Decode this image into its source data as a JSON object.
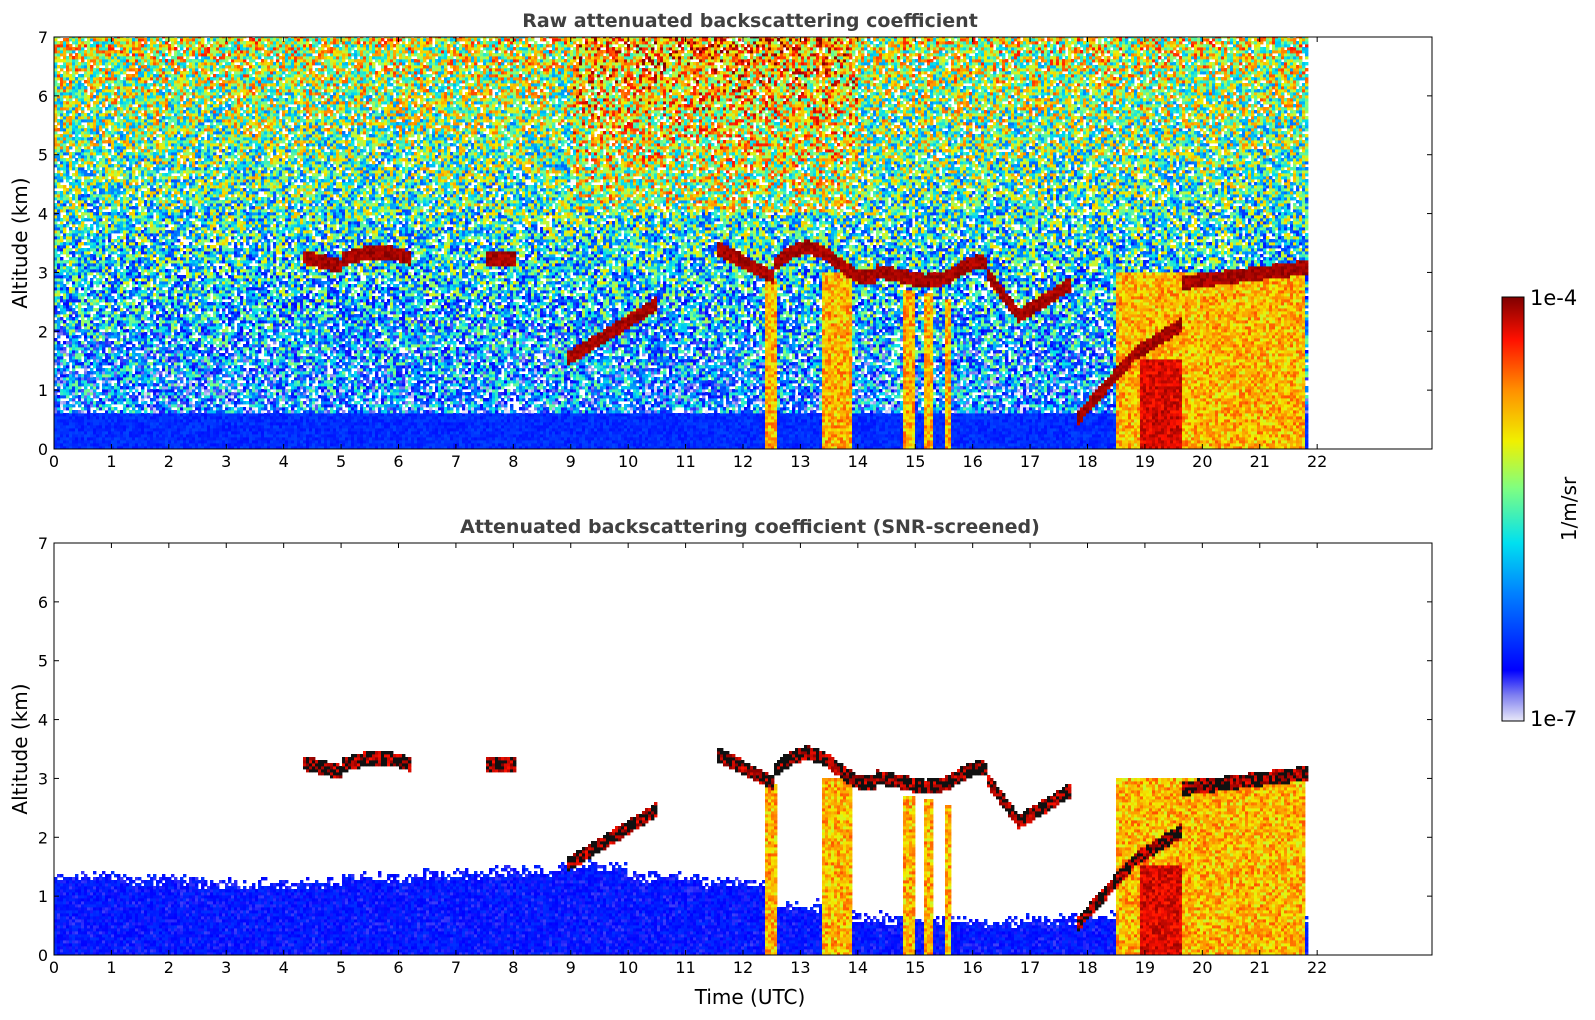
{
  "chart_data": [
    {
      "type": "heatmap",
      "title": "Raw attenuated backscattering coefficient",
      "xlabel": "",
      "ylabel": "Altitude (km)",
      "xlim": [
        0,
        24
      ],
      "ylim": [
        0,
        7
      ],
      "x_ticks": [
        "0",
        "1",
        "2",
        "3",
        "4",
        "5",
        "6",
        "7",
        "8",
        "9",
        "10",
        "11",
        "12",
        "13",
        "14",
        "15",
        "16",
        "17",
        "18",
        "19",
        "20",
        "21",
        "22"
      ],
      "y_ticks": [
        "0",
        "1",
        "2",
        "3",
        "4",
        "5",
        "6",
        "7"
      ],
      "data_end_time": 21.8,
      "screened": false,
      "cloud_layers": [
        {
          "t": [
            4.3,
            6.2
          ],
          "alt": [
            3.0,
            3.4
          ],
          "level": "high"
        },
        {
          "t": [
            7.5,
            8.0
          ],
          "alt": [
            3.1,
            3.3
          ],
          "level": "high"
        },
        {
          "t": [
            8.9,
            10.5
          ],
          "alt": [
            1.4,
            2.5
          ],
          "level": "high"
        },
        {
          "t": [
            11.5,
            17.7
          ],
          "alt": [
            2.2,
            3.8
          ],
          "level": "high"
        },
        {
          "t": [
            17.8,
            21.8
          ],
          "alt": [
            0.4,
            3.1
          ],
          "level": "high"
        }
      ],
      "precipitation_shafts": [
        {
          "t": [
            12.35,
            12.55
          ],
          "alt": [
            0,
            2.9
          ]
        },
        {
          "t": [
            13.35,
            13.85
          ],
          "alt": [
            0,
            3.0
          ]
        },
        {
          "t": [
            14.75,
            14.95
          ],
          "alt": [
            0,
            2.7
          ]
        },
        {
          "t": [
            15.15,
            15.3
          ],
          "alt": [
            0,
            2.6
          ]
        },
        {
          "t": [
            15.5,
            15.6
          ],
          "alt": [
            0,
            2.5
          ]
        },
        {
          "t": [
            18.45,
            21.75
          ],
          "alt": [
            0,
            3.0
          ]
        }
      ]
    },
    {
      "type": "heatmap",
      "title": "Attenuated backscattering coefficient (SNR-screened)",
      "xlabel": "Time (UTC)",
      "ylabel": "Altitude (km)",
      "xlim": [
        0,
        24
      ],
      "ylim": [
        0,
        7
      ],
      "x_ticks": [
        "0",
        "1",
        "2",
        "3",
        "4",
        "5",
        "6",
        "7",
        "8",
        "9",
        "10",
        "11",
        "12",
        "13",
        "14",
        "15",
        "16",
        "17",
        "18",
        "19",
        "20",
        "21",
        "22"
      ],
      "y_ticks": [
        "0",
        "1",
        "2",
        "3",
        "4",
        "5",
        "6",
        "7"
      ],
      "data_end_time": 21.8,
      "screened": true,
      "boundary_layer_top_km": [
        1.3,
        1.25,
        1.2,
        1.2,
        1.3,
        1.35,
        1.4,
        1.5,
        1.3,
        1.2,
        0.8,
        0.6,
        0.55,
        0.55,
        0.6,
        0.55,
        0.55,
        0.6,
        0.6
      ]
    }
  ],
  "colorbar": {
    "label": "1/m/sr",
    "max_label": "1e-4",
    "min_label": "1e-7",
    "scale": "log",
    "range": [
      1e-07,
      0.0001
    ],
    "colormap": "jet"
  }
}
